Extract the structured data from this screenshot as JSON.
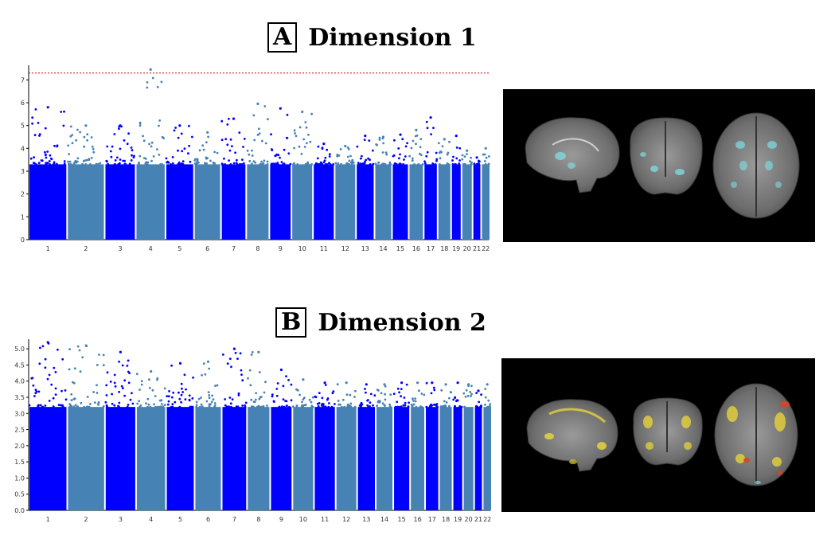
{
  "colors": {
    "dark_blue": "#0000ff",
    "steel_blue": "#4682b4",
    "threshold": "#cc0000",
    "axis": "#000000"
  },
  "chromosomes": [
    "1",
    "2",
    "3",
    "4",
    "5",
    "6",
    "7",
    "8",
    "9",
    "10",
    "11",
    "12",
    "13",
    "14",
    "15",
    "16",
    "17",
    "18",
    "19",
    "20",
    "21",
    "22"
  ],
  "panels": [
    {
      "letter": "A",
      "name": "Dimension 1",
      "brain_image": "brain-slices-cyan-overlay",
      "chart_data": {
        "type": "scatter",
        "subtype": "manhattan",
        "ylim": [
          0,
          7.5
        ],
        "yticks": [
          "0",
          "1",
          "2",
          "3",
          "4",
          "5",
          "6",
          "7"
        ],
        "threshold": 7.3,
        "chromosomes": [
          {
            "label": "1",
            "max": 5.8
          },
          {
            "label": "2",
            "max": 5.0
          },
          {
            "label": "3",
            "max": 5.0
          },
          {
            "label": "4",
            "max": 7.45
          },
          {
            "label": "5",
            "max": 5.0
          },
          {
            "label": "6",
            "max": 4.7
          },
          {
            "label": "7",
            "max": 5.3
          },
          {
            "label": "8",
            "max": 5.95
          },
          {
            "label": "9",
            "max": 5.75
          },
          {
            "label": "10",
            "max": 5.6
          },
          {
            "label": "11",
            "max": 4.2
          },
          {
            "label": "12",
            "max": 4.1
          },
          {
            "label": "13",
            "max": 4.55
          },
          {
            "label": "14",
            "max": 4.5
          },
          {
            "label": "15",
            "max": 4.6
          },
          {
            "label": "16",
            "max": 4.8
          },
          {
            "label": "17",
            "max": 5.35
          },
          {
            "label": "18",
            "max": 4.4
          },
          {
            "label": "19",
            "max": 4.55
          },
          {
            "label": "20",
            "max": 3.9
          },
          {
            "label": "21",
            "max": 3.6
          },
          {
            "label": "22",
            "max": 4.0
          }
        ]
      }
    },
    {
      "letter": "B",
      "name": "Dimension 2",
      "brain_image": "brain-slices-yellow-red-overlay",
      "chart_data": {
        "type": "scatter",
        "subtype": "manhattan",
        "ylim": [
          0,
          5.2
        ],
        "yticks": [
          "0.0",
          "0.5",
          "1.0",
          "1.5",
          "2.0",
          "2.5",
          "3.0",
          "3.5",
          "4.0",
          "4.5",
          "5.0"
        ],
        "chromosomes": [
          {
            "label": "1",
            "max": 5.2
          },
          {
            "label": "2",
            "max": 5.1
          },
          {
            "label": "3",
            "max": 4.9
          },
          {
            "label": "4",
            "max": 4.3
          },
          {
            "label": "5",
            "max": 4.55
          },
          {
            "label": "6",
            "max": 4.6
          },
          {
            "label": "7",
            "max": 5.0
          },
          {
            "label": "8",
            "max": 4.9
          },
          {
            "label": "9",
            "max": 4.35
          },
          {
            "label": "10",
            "max": 4.05
          },
          {
            "label": "11",
            "max": 3.95
          },
          {
            "label": "12",
            "max": 3.95
          },
          {
            "label": "13",
            "max": 3.9
          },
          {
            "label": "14",
            "max": 3.9
          },
          {
            "label": "15",
            "max": 3.95
          },
          {
            "label": "16",
            "max": 3.95
          },
          {
            "label": "17",
            "max": 3.95
          },
          {
            "label": "18",
            "max": 3.9
          },
          {
            "label": "19",
            "max": 3.95
          },
          {
            "label": "20",
            "max": 3.9
          },
          {
            "label": "21",
            "max": 3.7
          },
          {
            "label": "22",
            "max": 3.9
          }
        ]
      }
    }
  ]
}
